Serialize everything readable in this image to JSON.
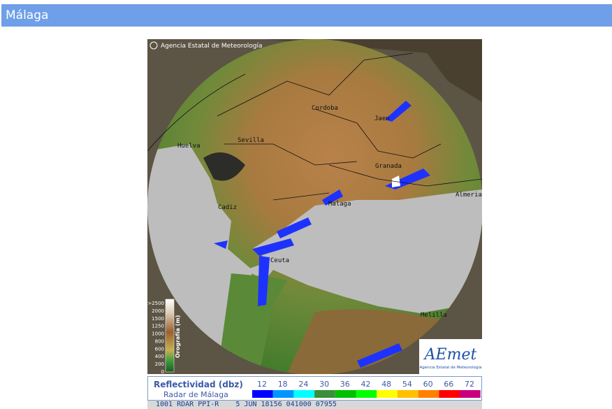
{
  "header": {
    "title": "Málaga"
  },
  "map": {
    "copyright": "Agencia Estatal de Meteorología",
    "cities": [
      {
        "label": "Cordoba"
      },
      {
        "label": "Jaen"
      },
      {
        "label": "Sevilla"
      },
      {
        "label": "Huelva"
      },
      {
        "label": "Granada"
      },
      {
        "label": "Malaga"
      },
      {
        "label": "Cadiz"
      },
      {
        "label": "Ceuta"
      },
      {
        "label": "Melilla"
      },
      {
        "label": "Almeria"
      }
    ],
    "orography": {
      "title": "Orografía (m)",
      "levels": [
        ">2500",
        "2000",
        "1500",
        "1250",
        "1000",
        "800",
        "600",
        "400",
        "200",
        "0"
      ]
    },
    "logo": {
      "name": "AEmet",
      "subtitle": "Agencia Estatal de Meteorología"
    }
  },
  "legend": {
    "title": "Reflectividad (dbz)",
    "subtitle": "Radar de Málaga",
    "levels": [
      {
        "label": "12",
        "color": "#0000fe"
      },
      {
        "label": "18",
        "color": "#0096ff"
      },
      {
        "label": "24",
        "color": "#00ffff"
      },
      {
        "label": "30",
        "color": "#3a8f3a"
      },
      {
        "label": "36",
        "color": "#00c000"
      },
      {
        "label": "42",
        "color": "#00ff00"
      },
      {
        "label": "48",
        "color": "#ffff00"
      },
      {
        "label": "54",
        "color": "#ffc000"
      },
      {
        "label": "60",
        "color": "#ff8000"
      },
      {
        "label": "66",
        "color": "#ff0000"
      },
      {
        "label": "72",
        "color": "#c8007c"
      }
    ]
  },
  "footer": {
    "text": "1001 RDAR PPI-R    5 JUN 18156 041000 07955"
  }
}
